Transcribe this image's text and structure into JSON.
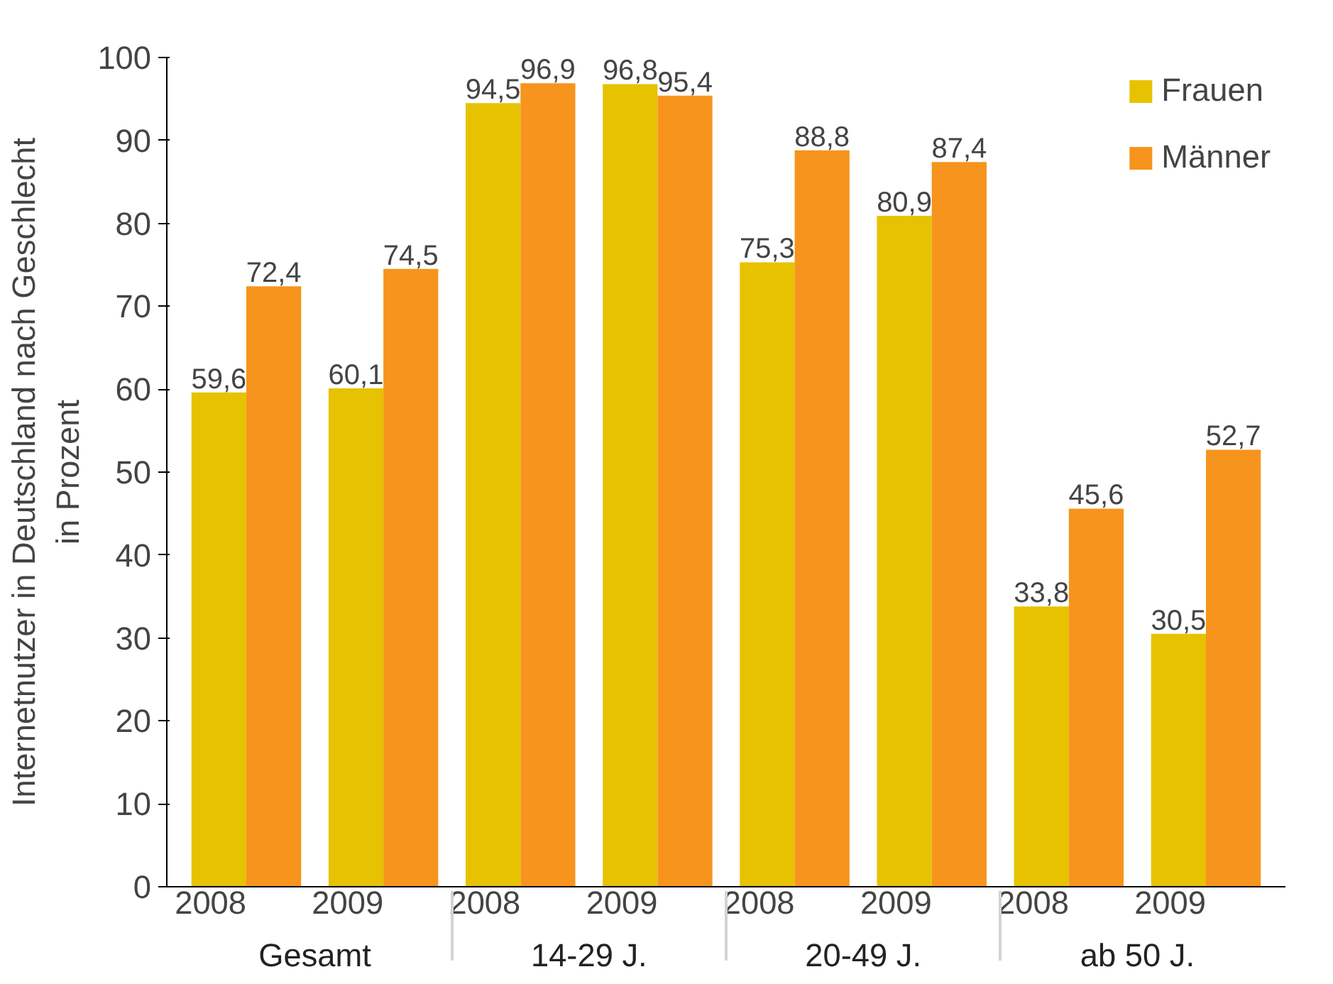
{
  "chart_data": {
    "type": "bar",
    "ylabel": "Internetnutzer in Deutschland nach Geschlecht\nin Prozent",
    "categories": [
      "2008",
      "2009",
      "2008",
      "2009",
      "2008",
      "2009",
      "2008",
      "2009"
    ],
    "annotations": [
      "Gesamt",
      "14-29 J.",
      "20-49 J.",
      "ab 50 J."
    ],
    "series": [
      {
        "name": "Frauen",
        "color": "#e6c200",
        "values": [
          59.6,
          60.1,
          94.5,
          96.8,
          75.3,
          80.9,
          33.8,
          30.5
        ],
        "value_labels": [
          "59,6",
          "60,1",
          "94,5",
          "96,8",
          "75,3",
          "80,9",
          "33,8",
          "30,5"
        ]
      },
      {
        "name": "Männer",
        "color": "#f7941d",
        "values": [
          72.4,
          74.5,
          96.9,
          95.4,
          88.8,
          87.4,
          45.6,
          52.7
        ],
        "value_labels": [
          "72,4",
          "74,5",
          "96,9",
          "95,4",
          "88,8",
          "87,4",
          "45,6",
          "52,7"
        ]
      }
    ],
    "ylim": [
      0,
      100
    ],
    "yticks": [
      0,
      10,
      20,
      30,
      40,
      50,
      60,
      70,
      80,
      90,
      100
    ],
    "grid": false,
    "legend": "top right"
  }
}
